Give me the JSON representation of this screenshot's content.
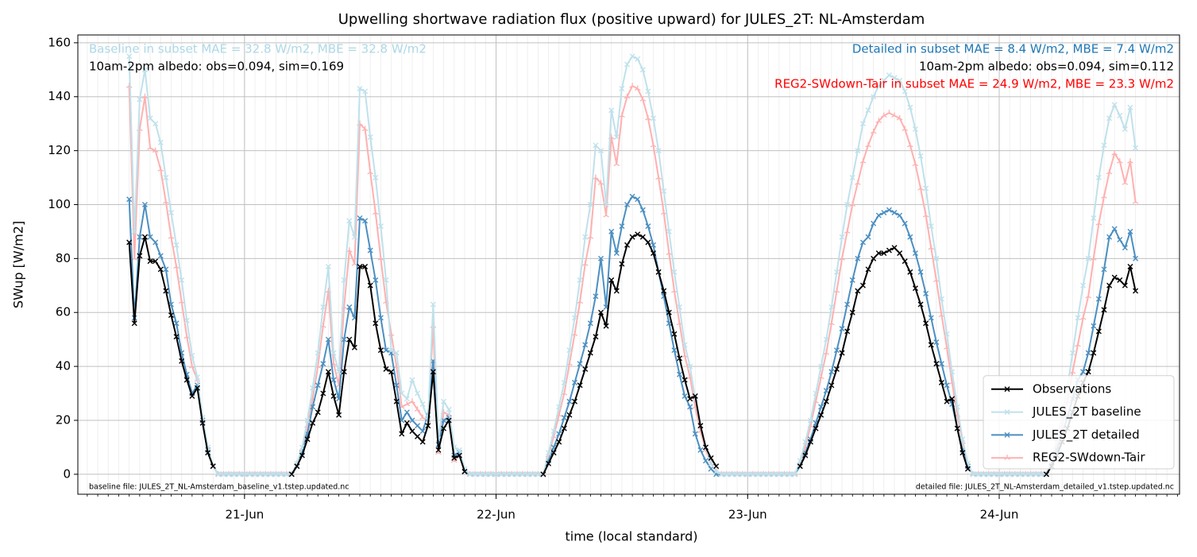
{
  "chart_data": {
    "type": "line",
    "title": "Upwelling shortwave radiation flux (positive upward) for JULES_2T: NL-Amsterdam",
    "xlabel": "time (local standard)",
    "ylabel": "SWup [W/m2]",
    "annotations": [
      {
        "text": "Baseline in subset MAE = 32.8 W/m2, MBE = 32.8 W/m2",
        "color": "#add8e6"
      },
      {
        "text": "10am-2pm albedo: obs=0.094, sim=0.169",
        "color": "#000000"
      },
      {
        "text": "Detailed in subset MAE = 8.4 W/m2, MBE = 7.4 W/m2",
        "color": "#1f77b4"
      },
      {
        "text": "10am-2pm albedo: obs=0.094, sim=0.112",
        "color": "#000000"
      },
      {
        "text": "REG2-SWdown-Tair in subset MAE = 24.9 W/m2, MBE = 23.3 W/m2",
        "color": "#ff0000"
      },
      {
        "text": "baseline file: JULES_2T_NL-Amsterdam_baseline_v1.tstep.updated.nc",
        "color": "#000000"
      },
      {
        "text": "detailed file: JULES_2T_NL-Amsterdam_detailed_v1.tstep.updated.nc",
        "color": "#000000"
      }
    ],
    "x": [
      -11,
      -10.5,
      -10,
      -9.5,
      -9,
      -8.5,
      -8,
      -7.5,
      -7,
      -6.5,
      -6,
      -5.5,
      -5,
      -4.5,
      -4,
      -3.5,
      -3,
      -2.5,
      -2,
      -1.5,
      -1,
      -0.5,
      0,
      0.5,
      1,
      1.5,
      2,
      2.5,
      3,
      3.5,
      4,
      4.5,
      5,
      5.5,
      6,
      6.5,
      7,
      7.5,
      8,
      8.5,
      9,
      9.5,
      10,
      10.5,
      11,
      11.5,
      12,
      12.5,
      13,
      13.5,
      14,
      14.5,
      15,
      15.5,
      16,
      16.5,
      17,
      17.5,
      18,
      18.5,
      19,
      19.5,
      20,
      20.5,
      21,
      21.5,
      22,
      22.5,
      23,
      23.5,
      24,
      24.5,
      25,
      25.5,
      26,
      26.5,
      27,
      27.5,
      28,
      28.5,
      29,
      29.5,
      30,
      30.5,
      31,
      31.5,
      32,
      32.5,
      33,
      33.5,
      34,
      34.5,
      35,
      35.5,
      36,
      36.5,
      37,
      37.5,
      38,
      38.5,
      39,
      39.5,
      40,
      40.5,
      41,
      41.5,
      42,
      42.5,
      43,
      43.5,
      44,
      44.5,
      45,
      45.5,
      46,
      46.5,
      47,
      47.5,
      48,
      48.5,
      49,
      49.5,
      50,
      50.5,
      51,
      51.5,
      52,
      52.5,
      53,
      53.5,
      54,
      54.5,
      55,
      55.5,
      56,
      56.5,
      57,
      57.5,
      58,
      58.5,
      59,
      59.5,
      60,
      60.5,
      61,
      61.5,
      62,
      62.5,
      63,
      63.5,
      64,
      64.5,
      65,
      65.5,
      66,
      66.5,
      67,
      67.5,
      68,
      68.5,
      69,
      69.5,
      70,
      70.5,
      71,
      71.5,
      72,
      72.5,
      73,
      73.5,
      74,
      74.5,
      75,
      75.5,
      76,
      76.5,
      77,
      77.5,
      78,
      78.5,
      79,
      79.5,
      80,
      80.5,
      81,
      81.5,
      82,
      82.5,
      83,
      83.5,
      84,
      84.5,
      85
    ],
    "series": [
      {
        "name": "Observations",
        "color": "#000000",
        "marker": "x",
        "values": [
          86,
          56,
          81,
          88,
          79,
          79,
          76,
          68,
          59,
          51,
          42,
          35,
          29,
          32,
          19,
          8,
          3,
          null,
          null,
          null,
          null,
          null,
          null,
          null,
          null,
          null,
          null,
          null,
          null,
          null,
          null,
          0,
          3,
          7,
          13,
          19,
          23,
          30,
          38,
          29,
          22,
          38,
          50,
          47,
          77,
          77,
          70,
          56,
          46,
          39,
          38,
          27,
          15,
          19,
          16,
          14,
          12,
          18,
          38,
          9,
          17,
          20,
          6,
          7,
          1,
          null,
          null,
          null,
          null,
          null,
          null,
          null,
          null,
          null,
          null,
          null,
          null,
          null,
          null,
          0,
          4,
          8,
          12,
          17,
          22,
          27,
          33,
          39,
          45,
          51,
          60,
          55,
          72,
          68,
          78,
          85,
          88,
          89,
          88,
          86,
          82,
          75,
          68,
          60,
          52,
          43,
          35,
          28,
          29,
          18,
          10,
          6,
          3,
          null,
          null,
          null,
          null,
          null,
          null,
          null,
          null,
          null,
          null,
          null,
          null,
          null,
          null,
          null,
          3,
          7,
          12,
          17,
          22,
          27,
          33,
          39,
          45,
          53,
          60,
          68,
          70,
          76,
          80,
          82,
          82,
          83,
          84,
          82,
          79,
          75,
          69,
          63,
          56,
          48,
          41,
          34,
          27,
          28,
          17,
          8,
          2,
          null,
          null,
          null,
          null,
          null,
          null,
          null,
          null,
          null,
          null,
          null,
          null,
          null,
          null,
          0,
          3,
          7,
          12,
          17,
          23,
          29,
          34,
          38,
          45,
          53,
          61,
          70,
          73,
          72,
          70,
          77,
          68
        ]
      },
      {
        "name": "JULES_2T baseline",
        "color": "#bfe1eb",
        "marker": "x",
        "values": [
          155,
          90,
          139,
          150,
          132,
          130,
          123,
          110,
          97,
          85,
          72,
          57,
          44,
          36,
          21,
          10,
          3,
          0,
          0,
          0,
          0,
          0,
          0,
          0,
          0,
          0,
          0,
          0,
          0,
          0,
          0,
          0,
          4,
          10,
          20,
          32,
          45,
          62,
          77,
          45,
          38,
          72,
          94,
          88,
          143,
          142,
          125,
          110,
          92,
          72,
          46,
          45,
          30,
          28,
          35,
          30,
          26,
          20,
          63,
          13,
          27,
          24,
          10,
          9,
          2,
          0,
          0,
          0,
          0,
          0,
          0,
          0,
          0,
          0,
          0,
          0,
          0,
          0,
          0,
          0,
          8,
          16,
          25,
          34,
          46,
          58,
          72,
          88,
          100,
          122,
          120,
          100,
          135,
          125,
          143,
          152,
          155,
          154,
          150,
          142,
          132,
          120,
          105,
          90,
          75,
          62,
          48,
          40,
          28,
          18,
          10,
          4,
          1,
          0,
          0,
          0,
          0,
          0,
          0,
          0,
          0,
          0,
          0,
          0,
          0,
          0,
          0,
          0,
          5,
          12,
          20,
          30,
          40,
          50,
          62,
          75,
          88,
          100,
          110,
          120,
          130,
          135,
          140,
          144,
          146,
          148,
          147,
          146,
          142,
          136,
          128,
          118,
          106,
          92,
          80,
          65,
          52,
          38,
          25,
          13,
          4,
          0,
          0,
          0,
          0,
          0,
          0,
          0,
          0,
          0,
          0,
          0,
          0,
          0,
          0,
          0,
          6,
          13,
          22,
          32,
          45,
          58,
          70,
          80,
          95,
          110,
          122,
          132,
          137,
          133,
          128,
          136,
          121
        ]
      },
      {
        "name": "JULES_2T detailed",
        "color": "#4b8fc1",
        "marker": "x",
        "values": [
          102,
          58,
          88,
          100,
          88,
          86,
          81,
          76,
          63,
          56,
          45,
          37,
          30,
          33,
          20,
          9,
          3,
          0,
          0,
          0,
          0,
          0,
          0,
          0,
          0,
          0,
          0,
          0,
          0,
          0,
          0,
          0,
          3,
          8,
          15,
          25,
          33,
          41,
          50,
          35,
          28,
          50,
          62,
          58,
          95,
          94,
          83,
          72,
          58,
          46,
          45,
          33,
          20,
          23,
          20,
          18,
          16,
          22,
          42,
          11,
          20,
          21,
          7,
          8,
          1,
          0,
          0,
          0,
          0,
          0,
          0,
          0,
          0,
          0,
          0,
          0,
          0,
          0,
          0,
          0,
          5,
          10,
          15,
          21,
          27,
          34,
          41,
          48,
          56,
          66,
          80,
          62,
          90,
          82,
          92,
          100,
          103,
          102,
          98,
          92,
          85,
          75,
          66,
          56,
          46,
          37,
          29,
          25,
          15,
          9,
          5,
          2,
          0,
          0,
          0,
          0,
          0,
          0,
          0,
          0,
          0,
          0,
          0,
          0,
          0,
          0,
          0,
          0,
          3,
          8,
          13,
          19,
          25,
          31,
          38,
          46,
          54,
          63,
          72,
          80,
          86,
          88,
          93,
          96,
          97,
          98,
          97,
          96,
          93,
          88,
          82,
          75,
          67,
          58,
          49,
          41,
          33,
          26,
          17,
          9,
          3,
          0,
          0,
          0,
          0,
          0,
          0,
          0,
          0,
          0,
          0,
          0,
          0,
          0,
          0,
          0,
          4,
          9,
          15,
          21,
          28,
          35,
          38,
          45,
          55,
          65,
          76,
          88,
          91,
          87,
          84,
          90,
          80
        ]
      },
      {
        "name": "REG2-SWdown-Tair",
        "color": "#ffb0b0",
        "marker": "tri_down",
        "values": [
          144,
          80,
          128,
          140,
          121,
          120,
          113,
          101,
          88,
          77,
          64,
          51,
          40,
          35,
          20,
          9,
          3,
          0,
          0,
          0,
          0,
          0,
          0,
          0,
          0,
          0,
          0,
          0,
          0,
          0,
          0,
          0,
          4,
          9,
          18,
          28,
          40,
          55,
          68,
          41,
          33,
          62,
          83,
          78,
          130,
          128,
          112,
          97,
          80,
          64,
          52,
          40,
          25,
          26,
          27,
          24,
          21,
          20,
          55,
          8,
          23,
          22,
          5,
          7,
          1,
          0,
          0,
          0,
          0,
          0,
          0,
          0,
          0,
          0,
          0,
          0,
          0,
          0,
          0,
          0,
          7,
          14,
          22,
          30,
          41,
          52,
          64,
          78,
          88,
          110,
          108,
          96,
          125,
          115,
          133,
          140,
          144,
          143,
          139,
          132,
          122,
          110,
          97,
          82,
          68,
          56,
          44,
          36,
          25,
          16,
          9,
          4,
          1,
          0,
          0,
          0,
          0,
          0,
          0,
          0,
          0,
          0,
          0,
          0,
          0,
          0,
          0,
          0,
          4,
          10,
          18,
          27,
          36,
          45,
          56,
          68,
          80,
          90,
          100,
          108,
          116,
          122,
          127,
          131,
          133,
          134,
          133,
          132,
          128,
          122,
          115,
          106,
          96,
          84,
          72,
          59,
          47,
          34,
          22,
          12,
          3,
          0,
          0,
          0,
          0,
          0,
          0,
          0,
          0,
          0,
          0,
          0,
          0,
          0,
          0,
          0,
          5,
          11,
          18,
          27,
          38,
          48,
          58,
          66,
          80,
          93,
          103,
          112,
          119,
          116,
          108,
          116,
          101
        ]
      }
    ],
    "xlim": [
      -15.9,
      89.2
    ],
    "xticks": [
      {
        "value": 0,
        "label": "21-Jun"
      },
      {
        "value": 24,
        "label": "22-Jun"
      },
      {
        "value": 48,
        "label": "23-Jun"
      },
      {
        "value": 72,
        "label": "24-Jun"
      }
    ],
    "xminor_interval": 1,
    "ylim": [
      -7.4,
      162.9
    ],
    "yticks": [
      0,
      20,
      40,
      60,
      80,
      100,
      120,
      140,
      160
    ],
    "grid": true,
    "legend": "lower right"
  }
}
